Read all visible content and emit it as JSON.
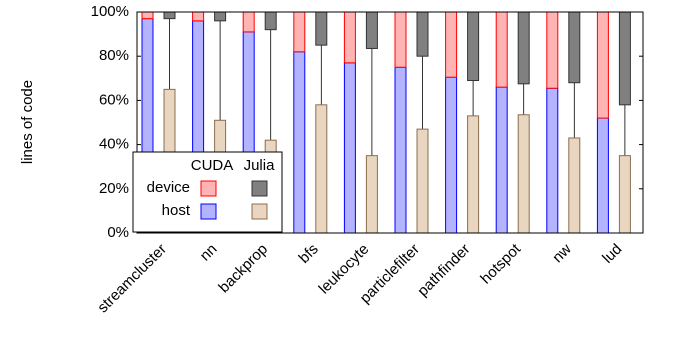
{
  "chart_data": {
    "type": "bar",
    "y_label": "lines of code",
    "categories": [
      "streamcluster",
      "nn",
      "backprop",
      "bfs",
      "leukocyte",
      "particlefilter",
      "pathfinder",
      "hotspot",
      "nw",
      "lud"
    ],
    "groups": [
      {
        "name": "CUDA",
        "series": [
          {
            "name": "host",
            "color": "#b3b3ff",
            "stroke": "#0000ff",
            "values": [
              97,
              96,
              91,
              82,
              77,
              75,
              70.5,
              66,
              65.5,
              52
            ]
          },
          {
            "name": "device",
            "color": "#ffb3b3",
            "stroke": "#ff0000",
            "values": [
              3,
              4,
              9,
              18,
              23,
              25,
              29.5,
              34,
              34.5,
              48
            ]
          }
        ]
      },
      {
        "name": "Julia",
        "series": [
          {
            "color": "#e8d6c0",
            "stroke": "#8b6d4f",
            "values": [
              65,
              51,
              42,
              58,
              35,
              47,
              53,
              53.5,
              43,
              35
            ]
          },
          {
            "color": "#808080",
            "stroke": "#333333",
            "values": [
              3,
              4,
              8,
              15,
              16.5,
              20,
              31,
              32.5,
              32,
              42
            ]
          }
        ]
      }
    ],
    "ylim": [
      0,
      100
    ],
    "yticks": [
      {
        "value": 0,
        "label": "0%"
      },
      {
        "value": 20,
        "label": "20%"
      },
      {
        "value": 40,
        "label": "40%"
      },
      {
        "value": 60,
        "label": "60%"
      },
      {
        "value": 80,
        "label": "80%"
      },
      {
        "value": 100,
        "label": "100%"
      }
    ]
  }
}
